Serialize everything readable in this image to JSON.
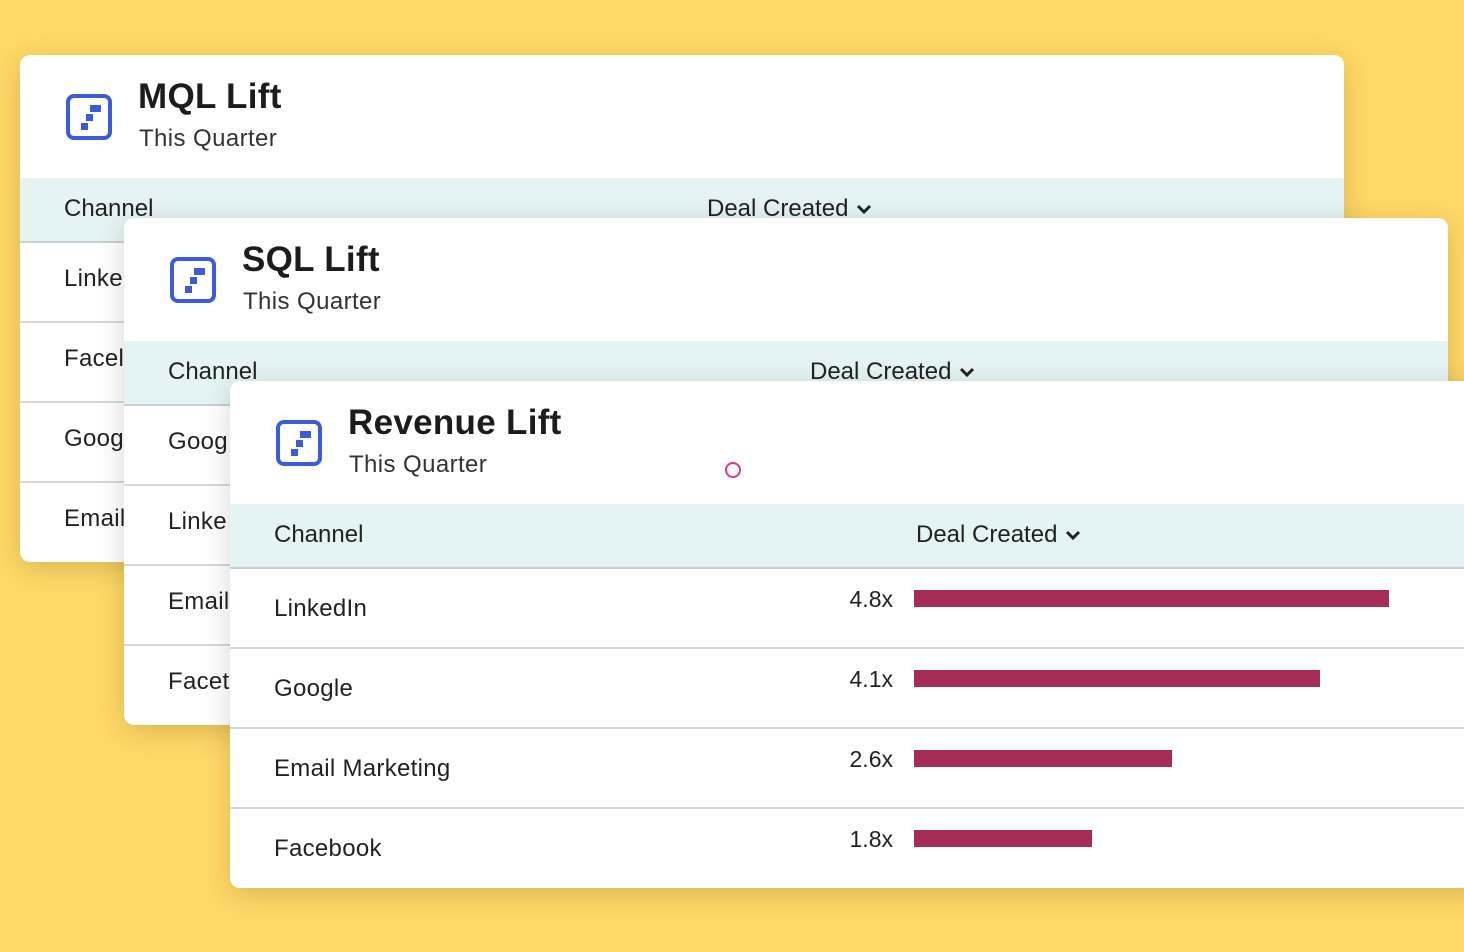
{
  "colors": {
    "background": "#FFD966",
    "header_row": "#E4F3F3",
    "bar": "#A52C55",
    "logo": "#3B5BDB",
    "cursor": "#E8338F"
  },
  "cards": {
    "mql": {
      "title": "MQL Lift",
      "subtitle": "This Quarter",
      "col_channel": "Channel",
      "col_deal": "Deal Created",
      "rows": [
        "Linke",
        "Facel",
        "Goog",
        "Email"
      ]
    },
    "sql": {
      "title": "SQL Lift",
      "subtitle": "This Quarter",
      "col_channel": "Channel",
      "col_deal": "Deal Created",
      "rows": [
        "Goog",
        "Linke",
        "Email",
        "Facet"
      ]
    },
    "revenue": {
      "title": "Revenue Lift",
      "subtitle": "This Quarter",
      "col_channel": "Channel",
      "col_deal": "Deal Created",
      "rows": [
        {
          "label": "LinkedIn",
          "value": "4.8x",
          "lift": 4.8
        },
        {
          "label": "Google",
          "value": "4.1x",
          "lift": 4.1
        },
        {
          "label": "Email Marketing",
          "value": "2.6x",
          "lift": 2.6
        },
        {
          "label": "Facebook",
          "value": "1.8x",
          "lift": 1.8
        }
      ]
    }
  }
}
